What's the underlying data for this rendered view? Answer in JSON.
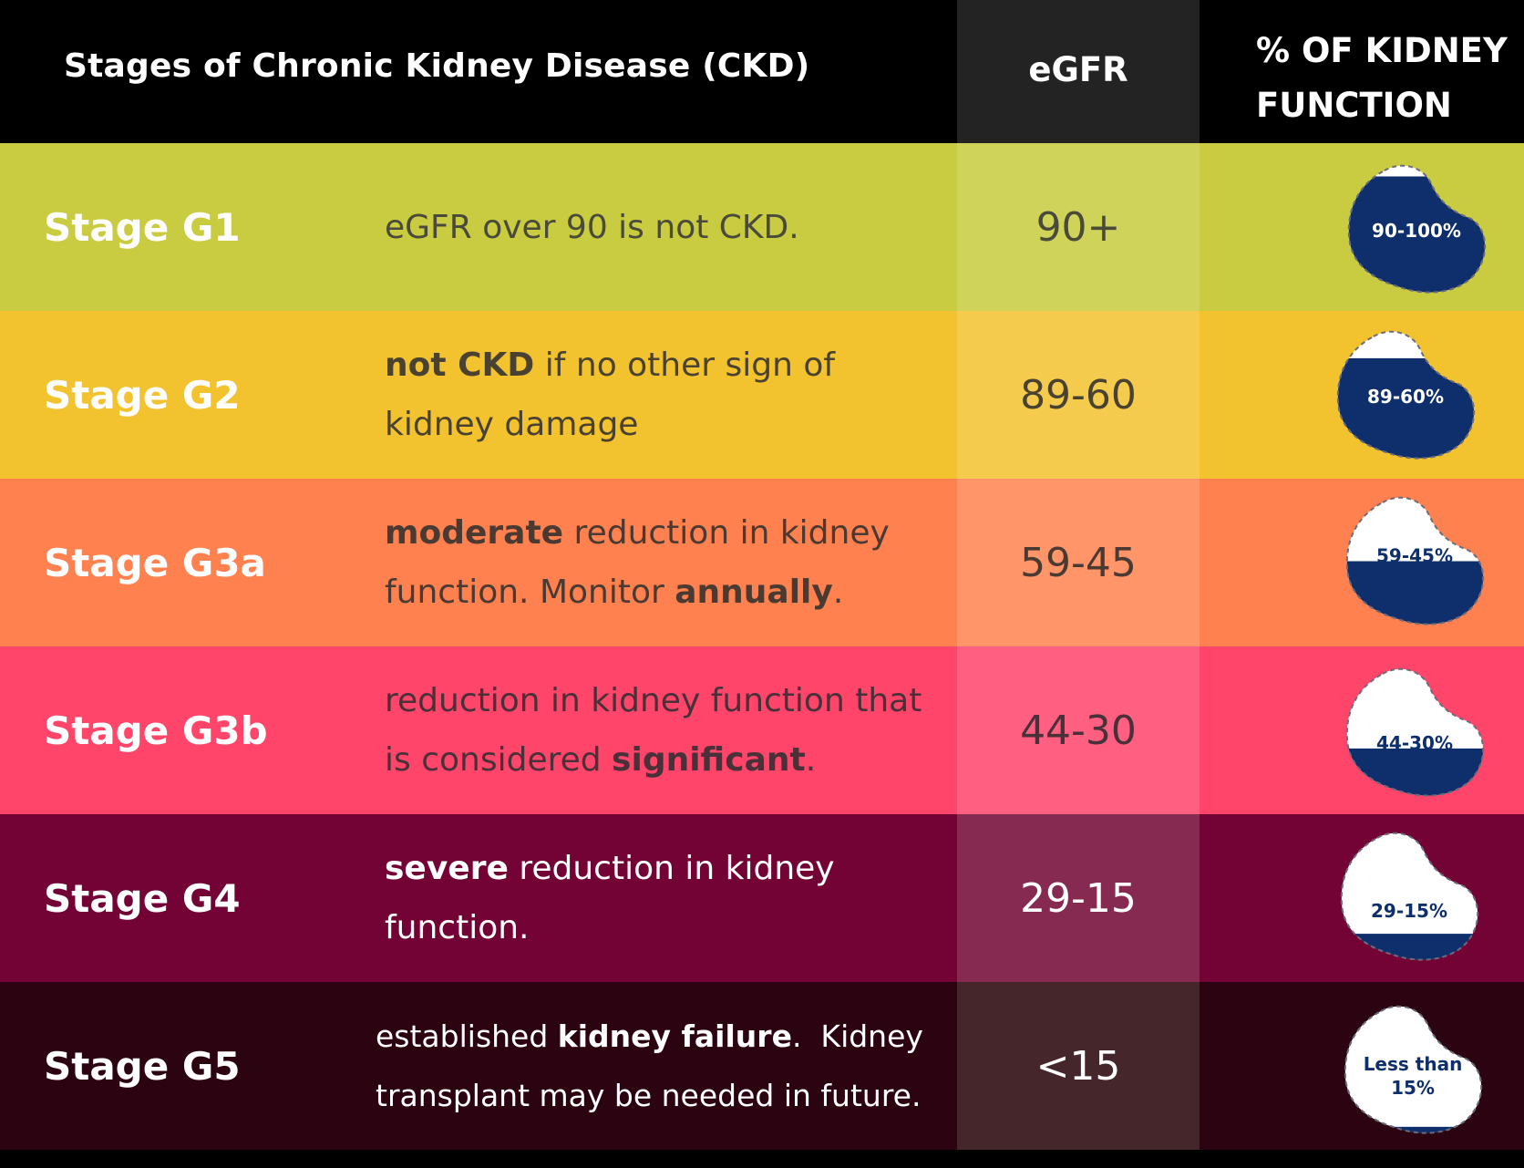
{
  "header": {
    "title": "Stages of Chronic Kidney Disease (CKD)",
    "egfr": "eGFR",
    "pct_line1": "% OF KIDNEY",
    "pct_line2": "FUNCTION"
  },
  "colors": {
    "kidney_fill": "#0e2f6b",
    "kidney_empty": "#ffffff"
  },
  "rows": [
    {
      "stage": "Stage G1",
      "desc": [
        {
          "t": "eGFR over 90 is not CKD.",
          "b": false
        }
      ],
      "egfr": "90+",
      "kidney_label": [
        "90-100%"
      ],
      "fill_fraction": 0.9,
      "colors": {
        "bg": "#c9cb40",
        "egfr_bg": "#d0d35a",
        "desc": "#4a4a3a",
        "egfr": "#4a4a3a"
      }
    },
    {
      "stage": "Stage G2",
      "desc": [
        {
          "t": "not CKD",
          "b": true
        },
        {
          "t": " if no other sign of kidney damage",
          "b": false
        }
      ],
      "egfr": "89-60",
      "kidney_label": [
        "89-60%"
      ],
      "fill_fraction": 0.78,
      "colors": {
        "bg": "#f3c22f",
        "egfr_bg": "#f5cb4e",
        "desc": "#4a4230",
        "egfr": "#4a4230"
      }
    },
    {
      "stage": "Stage G3a",
      "desc": [
        {
          "t": "moderate",
          "b": true
        },
        {
          "t": " reduction in kidney function. Monitor ",
          "b": false
        },
        {
          "t": "annually",
          "b": true
        },
        {
          "t": ".",
          "b": false
        }
      ],
      "egfr": "59-45",
      "kidney_label": [
        "59-45%"
      ],
      "fill_fraction": 0.5,
      "colors": {
        "bg": "#ff8150",
        "egfr_bg": "#ff9569",
        "desc": "#4a3a32",
        "egfr": "#4a3a32"
      }
    },
    {
      "stage": "Stage G3b",
      "desc": [
        {
          "t": "reduction in kidney function that is considered ",
          "b": false
        },
        {
          "t": "significant",
          "b": true
        },
        {
          "t": ".",
          "b": false
        }
      ],
      "egfr": "44-30",
      "kidney_label": [
        "44-30%"
      ],
      "fill_fraction": 0.38,
      "colors": {
        "bg": "#ff4569",
        "egfr_bg": "#ff6081",
        "desc": "#4a3038",
        "egfr": "#4a3038"
      }
    },
    {
      "stage": "Stage G4",
      "desc": [
        {
          "t": "severe",
          "b": true
        },
        {
          "t": " reduction in kidney function.",
          "b": false
        }
      ],
      "egfr": "29-15",
      "kidney_label": [
        "29-15%"
      ],
      "fill_fraction": 0.22,
      "colors": {
        "bg": "#730335",
        "egfr_bg": "#862a52",
        "desc": "#ffffff",
        "egfr": "#ffffff"
      }
    },
    {
      "stage": "Stage G5",
      "desc": [
        {
          "t": "established ",
          "b": false
        },
        {
          "t": "kidney failure",
          "b": true
        },
        {
          "t": ".  Kidney transplant may be needed in future.",
          "b": false
        }
      ],
      "egfr": "<15",
      "kidney_label": [
        "Less than",
        "15%"
      ],
      "fill_fraction": 0.07,
      "colors": {
        "bg": "#2c0310",
        "egfr_bg": "#44262b",
        "desc": "#ffffff",
        "egfr": "#ffffff"
      }
    }
  ]
}
